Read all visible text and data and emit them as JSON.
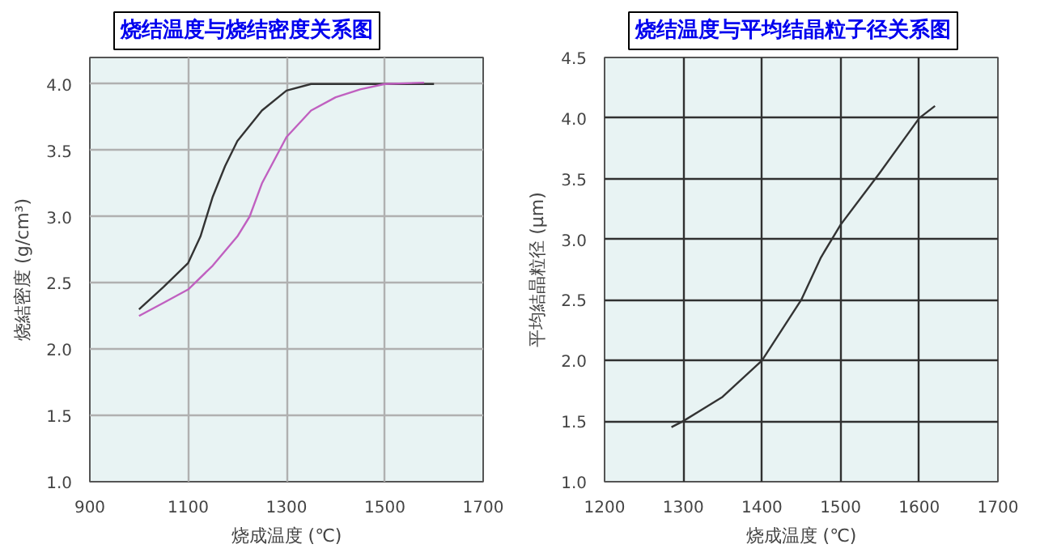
{
  "chart_data": [
    {
      "type": "line",
      "title": "烧结温度与烧结密度关系图",
      "xlabel": "烧成温度 (℃)",
      "ylabel": "烧結密度 (g/cm³)",
      "xlim": [
        900,
        1700
      ],
      "xticks": [
        900,
        1100,
        1300,
        1500,
        1700
      ],
      "ylim": [
        1.0,
        4.2
      ],
      "yticks": [
        {
          "value": 1,
          "label": "1.0"
        },
        1.5,
        {
          "value": 2,
          "label": "2.0"
        },
        2.5,
        {
          "value": 3,
          "label": "3.0"
        },
        3.5,
        {
          "value": 4,
          "label": "4.0"
        }
      ],
      "grid": true,
      "series": [
        {
          "color": "#333333",
          "x": [
            1000,
            1050,
            1100,
            1125,
            1150,
            1175,
            1200,
            1250,
            1300,
            1350,
            1400,
            1500,
            1600
          ],
          "values": [
            2.3,
            2.47,
            2.65,
            2.85,
            3.15,
            3.38,
            3.57,
            3.8,
            3.95,
            4.0,
            4.0,
            4.0,
            4.0
          ]
        },
        {
          "color": "#c060c0",
          "x": [
            1000,
            1050,
            1100,
            1150,
            1200,
            1225,
            1250,
            1300,
            1350,
            1400,
            1450,
            1500,
            1580
          ],
          "values": [
            2.25,
            2.35,
            2.45,
            2.63,
            2.85,
            3.0,
            3.25,
            3.6,
            3.8,
            3.9,
            3.96,
            4.0,
            4.01
          ]
        }
      ]
    },
    {
      "type": "line",
      "title": "烧结温度与平均结晶粒子径关系图",
      "xlabel": "烧成温度 (℃)",
      "ylabel": "平均結晶粒径 (μm)",
      "xlim": [
        1200,
        1700
      ],
      "xticks": [
        1200,
        1300,
        1400,
        1500,
        1600,
        1700
      ],
      "ylim": [
        1.0,
        4.5
      ],
      "yticks": [
        {
          "value": 1,
          "label": "1.0"
        },
        1.5,
        {
          "value": 2,
          "label": "2.0"
        },
        2.5,
        {
          "value": 3,
          "label": "3.0"
        },
        3.5,
        {
          "value": 4,
          "label": "4.0"
        },
        4.5
      ],
      "grid": true,
      "series": [
        {
          "color": "#333333",
          "x": [
            1285,
            1300,
            1350,
            1400,
            1450,
            1475,
            1500,
            1550,
            1600,
            1620
          ],
          "values": [
            1.45,
            1.5,
            1.7,
            2.0,
            2.5,
            2.85,
            3.12,
            3.55,
            4.0,
            4.1
          ]
        }
      ]
    }
  ]
}
